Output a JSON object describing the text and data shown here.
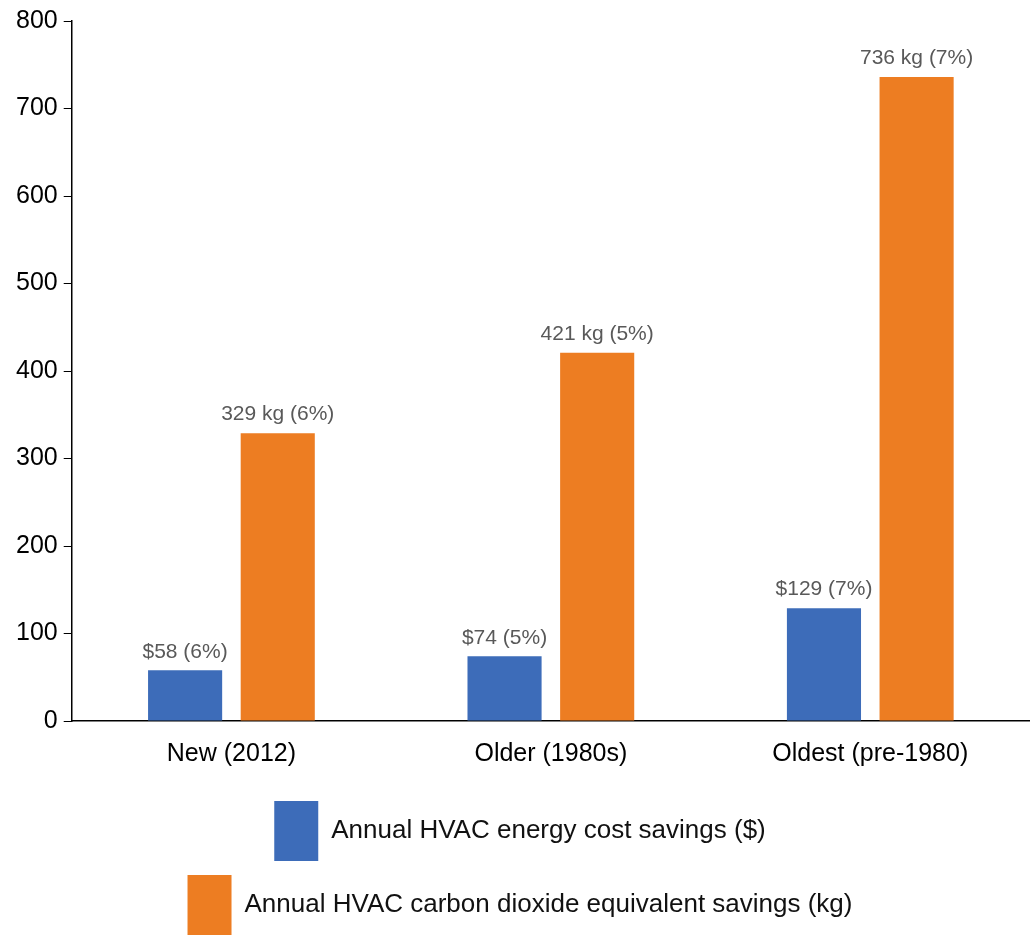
{
  "chart_data": {
    "type": "bar",
    "categories": [
      "New (2012)",
      "Older (1980s)",
      "Oldest (pre-1980)"
    ],
    "series": [
      {
        "name": "Annual HVAC energy cost savings ($)",
        "color": "#3d6cb9",
        "values": [
          58,
          74,
          129
        ],
        "value_labels": [
          "$58 (6%)",
          "$74 (5%)",
          "$129 (7%)"
        ]
      },
      {
        "name": "Annual HVAC carbon dioxide equivalent savings (kg)",
        "color": "#ed7d22",
        "values": [
          329,
          421,
          736
        ],
        "value_labels": [
          "329 kg (6%)",
          "421 kg (5%)",
          "736 kg (7%)"
        ]
      }
    ],
    "ylim": [
      0,
      800
    ],
    "yticks": [
      0,
      100,
      200,
      300,
      400,
      500,
      600,
      700,
      800
    ],
    "grid": false,
    "legend": "bottom"
  }
}
